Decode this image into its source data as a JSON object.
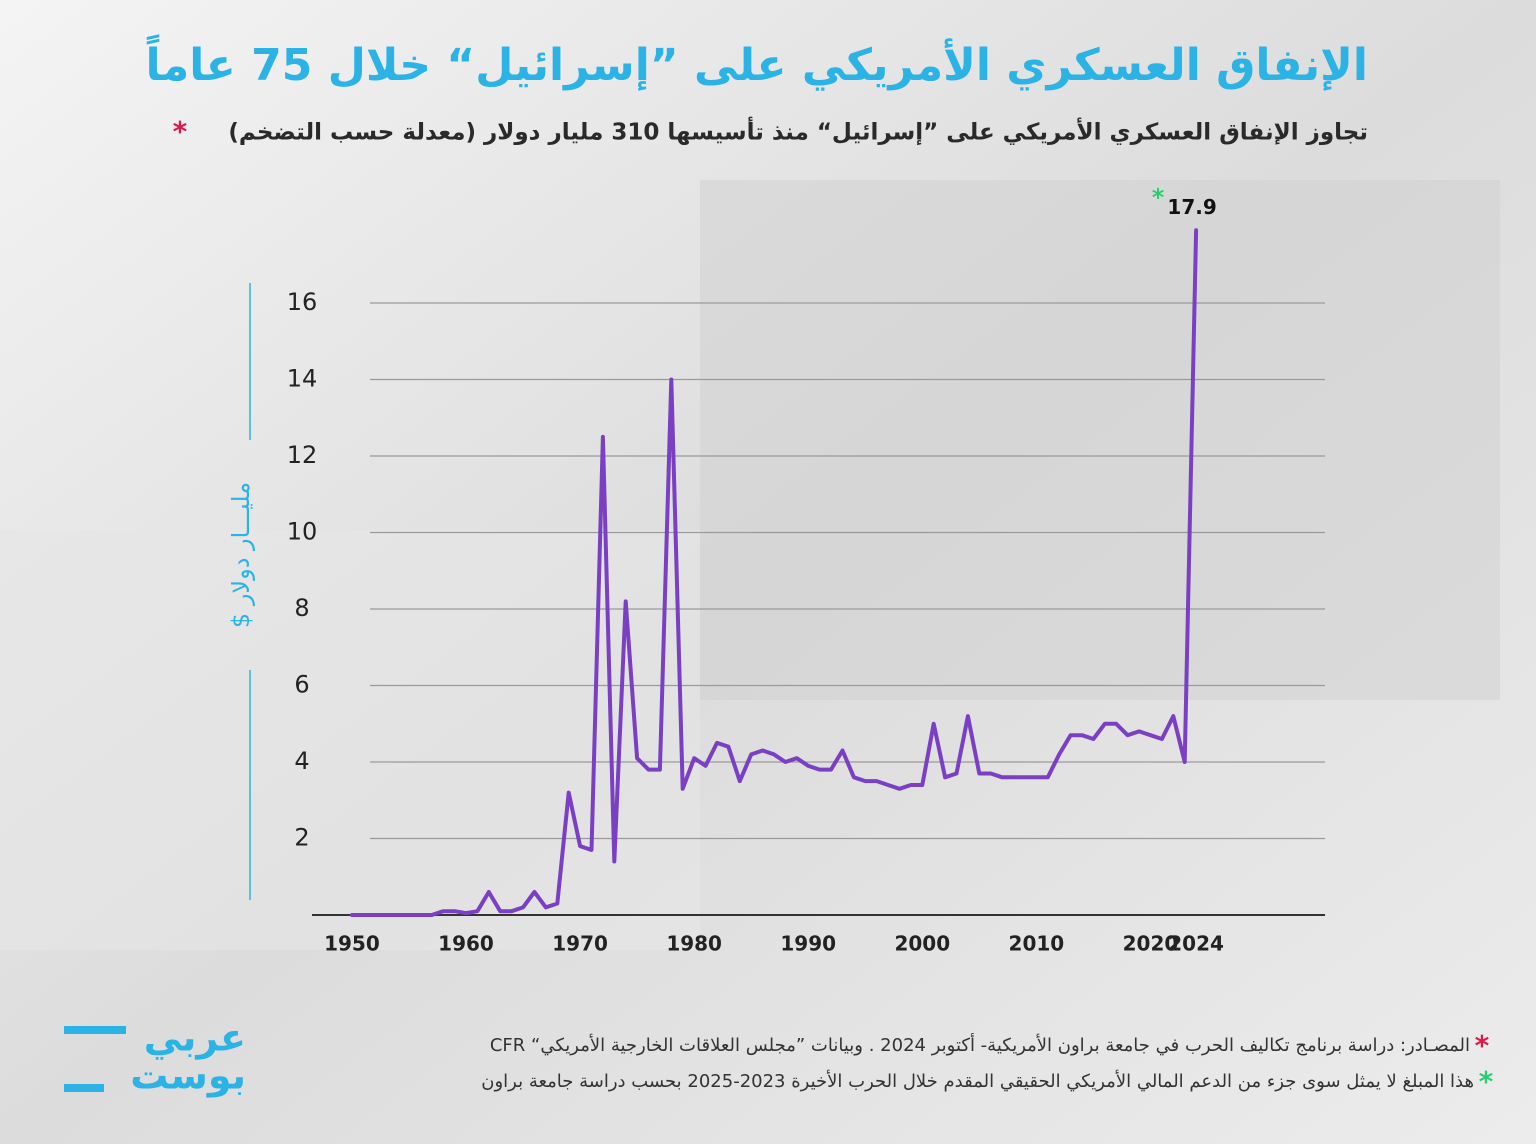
{
  "chart_data": {
    "type": "line",
    "title": "الإنفاق العسكري الأمريكي على ”إسرائيل“ خلال 75 عاماً",
    "subtitle": "تجاوز الإنفاق العسكري الأمريكي على ”إسرائيل“ منذ تأسيسها 310 مليار دولار (معدلة حسب التضخم)",
    "subtitle_marker": "*",
    "y_label": "مليـــار دولار $",
    "x": [
      1950,
      1951,
      1952,
      1953,
      1954,
      1955,
      1956,
      1957,
      1958,
      1959,
      1960,
      1961,
      1962,
      1963,
      1964,
      1965,
      1966,
      1967,
      1968,
      1969,
      1970,
      1971,
      1972,
      1973,
      1974,
      1975,
      1976,
      1977,
      1978,
      1979,
      1980,
      1981,
      1982,
      1983,
      1984,
      1985,
      1986,
      1987,
      1988,
      1989,
      1990,
      1991,
      1992,
      1993,
      1994,
      1995,
      1996,
      1997,
      1998,
      1999,
      2000,
      2001,
      2002,
      2003,
      2004,
      2005,
      2006,
      2007,
      2008,
      2009,
      2010,
      2011,
      2012,
      2013,
      2014,
      2015,
      2016,
      2017,
      2018,
      2019,
      2020,
      2021,
      2022,
      2023,
      2024
    ],
    "series": [
      {
        "name": "الإنفاق العسكري",
        "color": "#7b3fc4",
        "values": [
          0,
          0,
          0,
          0,
          0,
          0,
          0,
          0,
          0.1,
          0.1,
          0.05,
          0.1,
          0.6,
          0.1,
          0.1,
          0.2,
          0.6,
          0.2,
          0.3,
          3.2,
          1.8,
          1.7,
          12.5,
          1.4,
          8.2,
          4.1,
          3.8,
          3.8,
          14.0,
          3.3,
          4.1,
          3.9,
          4.5,
          4.4,
          3.5,
          4.2,
          4.3,
          4.2,
          4.0,
          4.1,
          3.9,
          3.8,
          3.8,
          4.3,
          3.6,
          3.5,
          3.5,
          3.4,
          3.3,
          3.4,
          3.4,
          5.0,
          3.6,
          3.7,
          5.2,
          3.7,
          3.7,
          3.6,
          3.6,
          3.6,
          3.6,
          3.6,
          4.2,
          4.7,
          4.7,
          4.6,
          5.0,
          5.0,
          4.7,
          4.8,
          4.7,
          4.6,
          5.2,
          4.0,
          17.9
        ]
      }
    ],
    "annotation": {
      "text": "17.9",
      "marker": "*"
    },
    "xlim": [
      1946.5,
      2035.3
    ],
    "xticks": [
      1950,
      1960,
      1970,
      1980,
      1990,
      2000,
      2010,
      2020,
      2024
    ],
    "ylim": [
      0,
      18.5
    ],
    "yticks": [
      2,
      4,
      6,
      8,
      10,
      12,
      14,
      16
    ],
    "grid": true,
    "footnotes": [
      {
        "marker": "*",
        "text": "المصـادر: دراسة برنامج تكاليف الحرب في جامعة براون الأمريكية- أكتوبر 2024 . وبيانات ”مجلس العلاقات الخارجية الأمريكي“ CFR"
      },
      {
        "marker": "*",
        "text": "هذا المبلغ لا يمثل سوى جزء من الدعم المالي الأمريكي الحقيقي المقدم خلال الحرب الأخيرة 2023-2025 بحسب دراسة جامعة براون"
      }
    ],
    "logo": [
      "عربي",
      "بوست"
    ]
  }
}
